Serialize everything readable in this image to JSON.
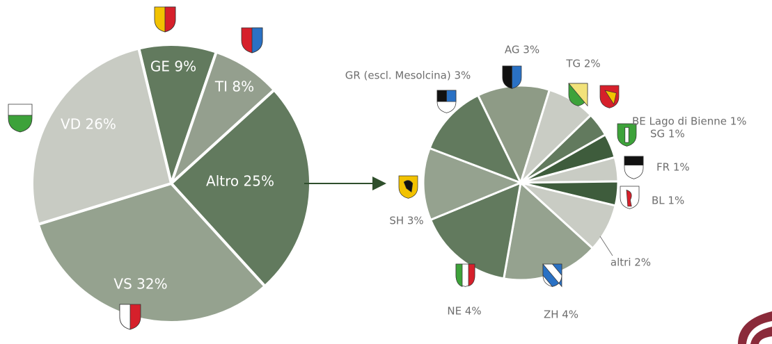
{
  "chart_data": [
    {
      "type": "pie",
      "value_labels": [
        "GE 9%",
        "TI 8%",
        "Altro 25%",
        "VS 32%",
        "VD 26%"
      ],
      "values": [
        9,
        8,
        25,
        32,
        26
      ],
      "colors": [
        "#627a5e",
        "#949f8e",
        "#627a5e",
        "#95a28f",
        "#c8cbc3"
      ]
    },
    {
      "type": "pie",
      "value_labels": [
        "AG 3%",
        "TG 2%",
        "BE Lago di Bienne 1%",
        "SG 1%",
        "FR 1%",
        "BL 1%",
        "altri 2%",
        "ZH 4%",
        "NE 4%",
        "SH 3%",
        "GR (escl. Mesolcina) 3%"
      ],
      "values": [
        3,
        2,
        1,
        1,
        1,
        1,
        2,
        4,
        4,
        3,
        3
      ],
      "colors": [
        "#8e9b86",
        "#c9ccc4",
        "#627a5e",
        "#3e5c3c",
        "#c9ccc4",
        "#3e5c3c",
        "#c9ccc4",
        "#95a28f",
        "#627a5e",
        "#95a28f",
        "#627a5e"
      ]
    }
  ]
}
